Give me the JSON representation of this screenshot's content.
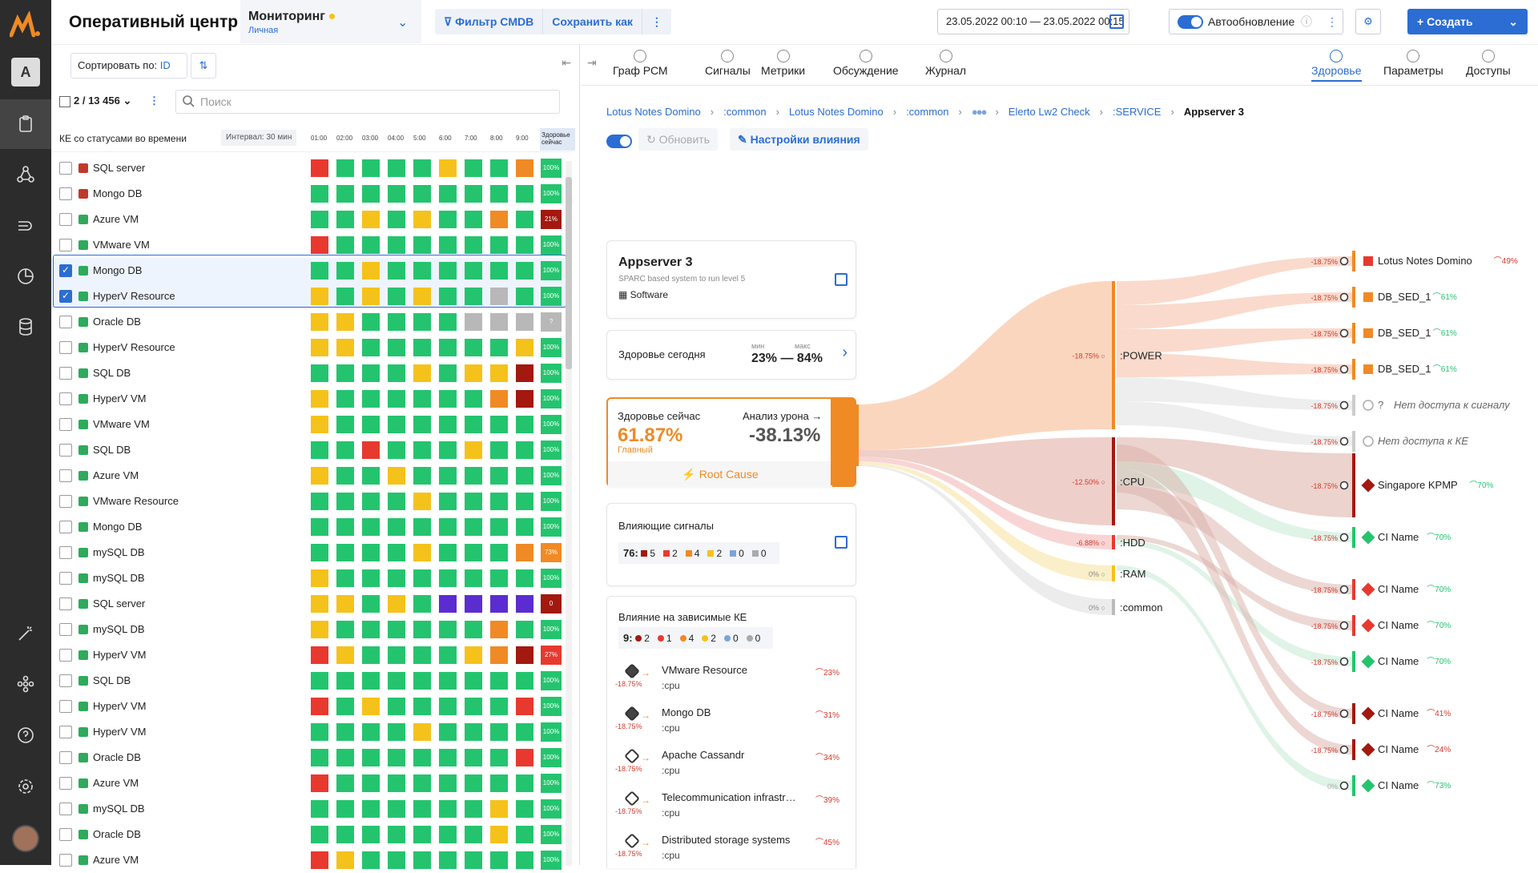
{
  "app": {
    "title": "Оперативный центр"
  },
  "monitoring": {
    "title": "Мониторинг",
    "subtitle": "Личная"
  },
  "toolbar": {
    "filter_label": "Фильтр CMDB",
    "save_as_label": "Сохранить как",
    "date_range": "23.05.2022 00:10 — 23.05.2022 00:15",
    "auto_update_label": "Автообновление",
    "create_label": "+ Создать"
  },
  "rail": {
    "user_initial": "A"
  },
  "left": {
    "sort_label": "Сортировать по:",
    "sort_value": "ID",
    "selection_count": "2 / 13 456",
    "search_placeholder": "Поиск",
    "table_title": "КЕ со статусами во времени",
    "interval_label": "Интервал: 30 мин",
    "hours": [
      "01:00",
      "02:00",
      "03:00",
      "04:00",
      "5:00",
      "6:00",
      "7:00",
      "8:00",
      "9:00"
    ],
    "now_label": "Здоровье сейчас",
    "rows": [
      {
        "name": "SQL server",
        "icon": "#c0392b",
        "checked": false,
        "cells": [
          "r",
          "g",
          "g",
          "g",
          "g",
          "y",
          "g",
          "g",
          "o"
        ],
        "pct": "100%",
        "pc": "g"
      },
      {
        "name": "Mongo DB",
        "icon": "#c0392b",
        "checked": false,
        "cells": [
          "g",
          "g",
          "g",
          "g",
          "g",
          "g",
          "g",
          "g",
          "g"
        ],
        "pct": "100%",
        "pc": "g"
      },
      {
        "name": "Azure VM",
        "icon": "#2eaa5c",
        "checked": false,
        "cells": [
          "g",
          "g",
          "y",
          "g",
          "y",
          "g",
          "g",
          "o",
          "g"
        ],
        "pct": "21%",
        "pc": "d"
      },
      {
        "name": "VMware VM",
        "icon": "#2eaa5c",
        "checked": false,
        "cells": [
          "r",
          "g",
          "g",
          "g",
          "g",
          "g",
          "g",
          "g",
          "g"
        ],
        "pct": "100%",
        "pc": "g"
      },
      {
        "name": "Mongo DB",
        "icon": "#2eaa5c",
        "checked": true,
        "cells": [
          "g",
          "g",
          "y",
          "g",
          "g",
          "g",
          "g",
          "g",
          "g"
        ],
        "pct": "100%",
        "pc": "g"
      },
      {
        "name": "HyperV Resource",
        "icon": "#2eaa5c",
        "checked": true,
        "cells": [
          "y",
          "g",
          "y",
          "g",
          "y",
          "g",
          "g",
          "s",
          "g"
        ],
        "pct": "100%",
        "pc": "g"
      },
      {
        "name": "Oracle DB",
        "icon": "#2eaa5c",
        "checked": false,
        "cells": [
          "y",
          "y",
          "g",
          "g",
          "g",
          "g",
          "s",
          "s",
          "s"
        ],
        "pct": "?",
        "pc": "s"
      },
      {
        "name": "HyperV Resource",
        "icon": "#2eaa5c",
        "checked": false,
        "cells": [
          "y",
          "y",
          "g",
          "g",
          "g",
          "g",
          "g",
          "g",
          "y"
        ],
        "pct": "100%",
        "pc": "g"
      },
      {
        "name": "SQL DB",
        "icon": "#2eaa5c",
        "checked": false,
        "cells": [
          "g",
          "g",
          "g",
          "g",
          "y",
          "g",
          "y",
          "y",
          "d"
        ],
        "pct": "100%",
        "pc": "g"
      },
      {
        "name": "HyperV VM",
        "icon": "#2eaa5c",
        "checked": false,
        "cells": [
          "y",
          "g",
          "g",
          "g",
          "g",
          "g",
          "g",
          "o",
          "d"
        ],
        "pct": "100%",
        "pc": "g"
      },
      {
        "name": "VMware VM",
        "icon": "#2eaa5c",
        "checked": false,
        "cells": [
          "y",
          "g",
          "g",
          "g",
          "g",
          "g",
          "g",
          "g",
          "g"
        ],
        "pct": "100%",
        "pc": "g"
      },
      {
        "name": "SQL DB",
        "icon": "#2eaa5c",
        "checked": false,
        "cells": [
          "g",
          "g",
          "r",
          "g",
          "g",
          "g",
          "y",
          "g",
          "g"
        ],
        "pct": "100%",
        "pc": "g"
      },
      {
        "name": "Azure VM",
        "icon": "#2eaa5c",
        "checked": false,
        "cells": [
          "y",
          "g",
          "g",
          "y",
          "g",
          "g",
          "g",
          "g",
          "g"
        ],
        "pct": "100%",
        "pc": "g"
      },
      {
        "name": "VMware Resource",
        "icon": "#2eaa5c",
        "checked": false,
        "cells": [
          "g",
          "g",
          "g",
          "g",
          "y",
          "g",
          "g",
          "g",
          "g"
        ],
        "pct": "100%",
        "pc": "g"
      },
      {
        "name": "Mongo DB",
        "icon": "#2eaa5c",
        "checked": false,
        "cells": [
          "g",
          "g",
          "g",
          "g",
          "g",
          "g",
          "g",
          "g",
          "g"
        ],
        "pct": "100%",
        "pc": "g"
      },
      {
        "name": "mySQL DB",
        "icon": "#2eaa5c",
        "checked": false,
        "cells": [
          "g",
          "g",
          "g",
          "g",
          "y",
          "g",
          "g",
          "g",
          "o"
        ],
        "pct": "73%",
        "pc": "o"
      },
      {
        "name": "mySQL DB",
        "icon": "#2eaa5c",
        "checked": false,
        "cells": [
          "y",
          "g",
          "g",
          "g",
          "g",
          "g",
          "g",
          "g",
          "g"
        ],
        "pct": "100%",
        "pc": "g"
      },
      {
        "name": "SQL server",
        "icon": "#2eaa5c",
        "checked": false,
        "cells": [
          "y",
          "y",
          "g",
          "y",
          "g",
          "p",
          "p",
          "p",
          "p"
        ],
        "pct": "0",
        "pc": "d"
      },
      {
        "name": "mySQL DB",
        "icon": "#2eaa5c",
        "checked": false,
        "cells": [
          "y",
          "g",
          "g",
          "g",
          "g",
          "g",
          "g",
          "o",
          "g"
        ],
        "pct": "100%",
        "pc": "g"
      },
      {
        "name": "HyperV VM",
        "icon": "#2eaa5c",
        "checked": false,
        "cells": [
          "r",
          "y",
          "g",
          "g",
          "g",
          "g",
          "y",
          "o",
          "d"
        ],
        "pct": "27%",
        "pc": "r"
      },
      {
        "name": "SQL DB",
        "icon": "#2eaa5c",
        "checked": false,
        "cells": [
          "g",
          "g",
          "g",
          "g",
          "g",
          "g",
          "g",
          "g",
          "g"
        ],
        "pct": "100%",
        "pc": "g"
      },
      {
        "name": "HyperV VM",
        "icon": "#2eaa5c",
        "checked": false,
        "cells": [
          "r",
          "g",
          "y",
          "g",
          "g",
          "g",
          "g",
          "g",
          "r"
        ],
        "pct": "100%",
        "pc": "g"
      },
      {
        "name": "HyperV VM",
        "icon": "#2eaa5c",
        "checked": false,
        "cells": [
          "g",
          "g",
          "g",
          "g",
          "y",
          "g",
          "g",
          "g",
          "g"
        ],
        "pct": "100%",
        "pc": "g"
      },
      {
        "name": "Oracle DB",
        "icon": "#2eaa5c",
        "checked": false,
        "cells": [
          "g",
          "g",
          "g",
          "g",
          "g",
          "g",
          "g",
          "g",
          "r"
        ],
        "pct": "100%",
        "pc": "g"
      },
      {
        "name": "Azure VM",
        "icon": "#2eaa5c",
        "checked": false,
        "cells": [
          "r",
          "g",
          "g",
          "g",
          "g",
          "g",
          "g",
          "g",
          "g"
        ],
        "pct": "100%",
        "pc": "g"
      },
      {
        "name": "mySQL DB",
        "icon": "#2eaa5c",
        "checked": false,
        "cells": [
          "g",
          "g",
          "g",
          "g",
          "g",
          "g",
          "g",
          "y",
          "g"
        ],
        "pct": "100%",
        "pc": "g"
      },
      {
        "name": "Oracle DB",
        "icon": "#2eaa5c",
        "checked": false,
        "cells": [
          "g",
          "g",
          "g",
          "g",
          "g",
          "g",
          "g",
          "y",
          "g"
        ],
        "pct": "100%",
        "pc": "g"
      },
      {
        "name": "Azure VM",
        "icon": "#2eaa5c",
        "checked": false,
        "cells": [
          "r",
          "y",
          "g",
          "g",
          "g",
          "g",
          "g",
          "g",
          "g"
        ],
        "pct": "100%",
        "pc": "g"
      }
    ]
  },
  "colors": {
    "g": "#24c46e",
    "y": "#f5c21b",
    "o": "#f08a24",
    "r": "#e8392f",
    "d": "#a3180f",
    "s": "#b8b8b8",
    "p": "#5b2dd1"
  },
  "right": {
    "tabs": [
      "Граф РСМ",
      "Сигналы",
      "Метрики",
      "Обсуждение",
      "Журнал"
    ],
    "right_tabs": [
      "Здоровье",
      "Параметры",
      "Доступы"
    ],
    "breadcrumbs": [
      "Lotus Notes Domino",
      ":common",
      "Lotus Notes Domino",
      ":common",
      "Elerto Lw2 Check",
      ":SERVICE"
    ],
    "current": "Appserver 3",
    "refresh_label": "Обновить",
    "influence_settings_label": "Настройки влияния",
    "ci_card": {
      "title": "Appserver 3",
      "desc": "SPARC based system to run level 5",
      "type": "Software"
    },
    "health_today": {
      "label": "Здоровье сегодня",
      "min_label": "мин",
      "max_label": "макс",
      "range": "23% — 84%"
    },
    "health_now": {
      "label": "Здоровье сейчас",
      "value": "61.87%",
      "sub": "Главный",
      "damage_label": "Анализ урона →",
      "damage_value": "-38.13%",
      "root_cause": "Root Cause"
    },
    "signals": {
      "label": "Влияющие сигналы",
      "total": "76:",
      "counts": [
        "5",
        "2",
        "4",
        "2",
        "0",
        "0"
      ]
    },
    "deps": {
      "label": "Влияние на зависимые КЕ",
      "total": "9:",
      "counts": [
        "2",
        "1",
        "4",
        "2",
        "0",
        "0"
      ],
      "items": [
        {
          "name": "VMware Resource",
          "sub": ":cpu",
          "val": "-18.75%",
          "pct": "23%",
          "full": true
        },
        {
          "name": "Mongo DB",
          "sub": ":cpu",
          "val": "-18.75%",
          "pct": "31%",
          "full": true
        },
        {
          "name": "Apache Cassandr",
          "sub": ":cpu",
          "val": "-18.75%",
          "pct": "34%",
          "full": false
        },
        {
          "name": "Telecommunication infrastr…",
          "sub": ":cpu",
          "val": "-18.75%",
          "pct": "39%",
          "full": false
        },
        {
          "name": "Distributed storage systems",
          "sub": ":cpu",
          "val": "-18.75%",
          "pct": "45%",
          "full": false
        }
      ]
    },
    "groups": [
      {
        "name": ":POWER",
        "val": "-18.75%"
      },
      {
        "name": ":CPU",
        "val": "-12.50%"
      },
      {
        "name": ":HDD",
        "val": "-6.88%"
      },
      {
        "name": ":RAM",
        "val": "0%"
      },
      {
        "name": ":common",
        "val": "0%"
      }
    ],
    "leaves": [
      {
        "name": "Lotus Notes Domino",
        "val": "-18.75%",
        "pct": "49%"
      },
      {
        "name": "DB_SED_1",
        "val": "-18.75%",
        "pct": "61%"
      },
      {
        "name": "DB_SED_1",
        "val": "-18.75%",
        "pct": "61%"
      },
      {
        "name": "DB_SED_1",
        "val": "-18.75%",
        "pct": "61%"
      },
      {
        "name": "Нет доступа к сигналу",
        "val": "-18.75%",
        "pct": ""
      },
      {
        "name": "Нет доступа к КЕ",
        "val": "-18.75%",
        "pct": ""
      },
      {
        "name": "Singapore KPMP",
        "val": "-18.75%",
        "pct": "70%"
      },
      {
        "name": "CI Name",
        "val": "-18.75%",
        "pct": "70%"
      },
      {
        "name": "CI Name",
        "val": "-18.75%",
        "pct": "70%"
      },
      {
        "name": "CI Name",
        "val": "-18.75%",
        "pct": "70%"
      },
      {
        "name": "CI Name",
        "val": "-18.75%",
        "pct": "70%"
      },
      {
        "name": "CI Name",
        "val": "-18.75%",
        "pct": "41%"
      },
      {
        "name": "CI Name",
        "val": "-18.75%",
        "pct": "24%"
      },
      {
        "name": "CI Name",
        "val": "0%",
        "pct": "73%"
      }
    ],
    "unknown_mark": "?"
  }
}
